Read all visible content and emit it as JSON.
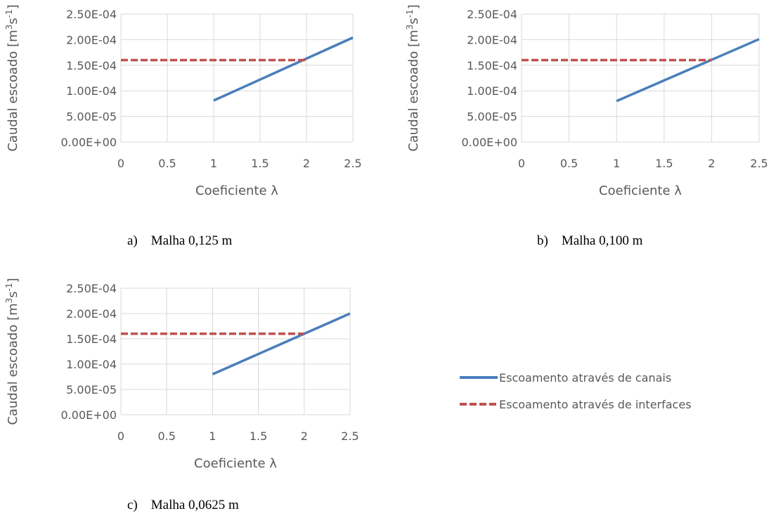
{
  "colors": {
    "canais": "#4A7EBB",
    "interfaces": "#C0504D",
    "grid": "#D9D9D9",
    "text": "#595959"
  },
  "legend": {
    "entries": [
      {
        "label": "Escoamento através de canais",
        "style": "solid",
        "color": "#4A7EBB"
      },
      {
        "label": "Escoamento através de interfaces",
        "style": "dashed",
        "color": "#C0504D"
      }
    ]
  },
  "captions": {
    "a": "a)    Malha 0,125 m",
    "b": "b)    Malha 0,100 m",
    "c": "c)    Malha 0,0625 m"
  },
  "chart_data": [
    {
      "type": "line",
      "xlabel": "Coeficiente λ",
      "ylabel_parts": [
        "Caudal escoado [m",
        "3",
        "s",
        "-1",
        "]"
      ],
      "xlim": [
        0,
        2.5
      ],
      "ylim": [
        0,
        0.00025
      ],
      "xticks": [
        "0",
        "0.5",
        "1",
        "1.5",
        "2",
        "2.5"
      ],
      "yticks": [
        "0.00E+00",
        "5.00E-05",
        "1.00E-04",
        "1.50E-04",
        "2.00E-04",
        "2.50E-04"
      ],
      "grid": true,
      "series": [
        {
          "name": "Escoamento através de canais",
          "style": "solid",
          "x": [
            1,
            2.5
          ],
          "y": [
            8.1e-05,
            0.000204
          ]
        },
        {
          "name": "Escoamento através de interfaces",
          "style": "dashed",
          "x": [
            0,
            2
          ],
          "y": [
            0.00016,
            0.00016
          ]
        }
      ]
    },
    {
      "type": "line",
      "xlabel": "Coeficiente λ",
      "ylabel_parts": [
        "Caudal escoado [m",
        "3",
        "s",
        "-1",
        "]"
      ],
      "xlim": [
        0,
        2.5
      ],
      "ylim": [
        0,
        0.00025
      ],
      "xticks": [
        "0",
        "0.5",
        "1",
        "1.5",
        "2",
        "2.5"
      ],
      "yticks": [
        "0.00E+00",
        "5.00E-05",
        "1.00E-04",
        "1.50E-04",
        "2.00E-04",
        "2.50E-04"
      ],
      "grid": true,
      "series": [
        {
          "name": "Escoamento através de canais",
          "style": "solid",
          "x": [
            1,
            2.5
          ],
          "y": [
            8e-05,
            0.000201
          ]
        },
        {
          "name": "Escoamento através de interfaces",
          "style": "dashed",
          "x": [
            0,
            2
          ],
          "y": [
            0.00016,
            0.00016
          ]
        }
      ]
    },
    {
      "type": "line",
      "xlabel": "Coeficiente λ",
      "ylabel_parts": [
        "Caudal escoado [m",
        "3",
        "s",
        "-1",
        "]"
      ],
      "xlim": [
        0,
        2.5
      ],
      "ylim": [
        0,
        0.00025
      ],
      "xticks": [
        "0",
        "0.5",
        "1",
        "1.5",
        "2",
        "2.5"
      ],
      "yticks": [
        "0.00E+00",
        "5.00E-05",
        "1.00E-04",
        "1.50E-04",
        "2.00E-04",
        "2.50E-04"
      ],
      "grid": true,
      "series": [
        {
          "name": "Escoamento através de canais",
          "style": "solid",
          "x": [
            1,
            2.5
          ],
          "y": [
            8e-05,
            0.0002
          ]
        },
        {
          "name": "Escoamento através de interfaces",
          "style": "dashed",
          "x": [
            0,
            2
          ],
          "y": [
            0.00016,
            0.00016
          ]
        }
      ]
    }
  ]
}
